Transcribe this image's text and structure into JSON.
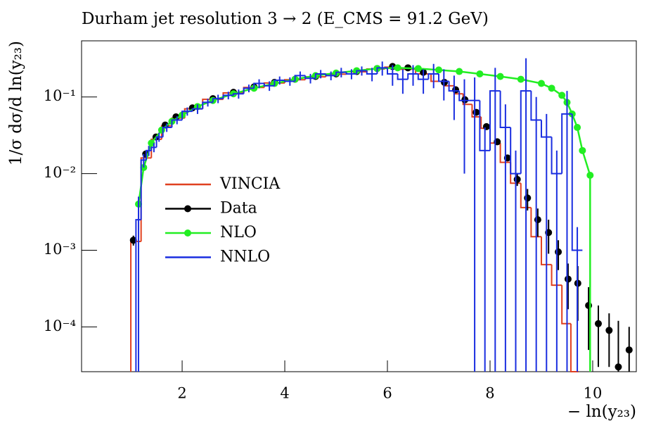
{
  "chart_data": {
    "type": "line",
    "title": "Durham jet resolution 3 → 2 (E_CMS = 91.2 GeV)",
    "x_label": "− ln(y₂₃)",
    "y_label": "1/σ dσ/d ln(y₂₃)",
    "xlim": [
      0.04,
      10.85
    ],
    "ylim": [
      2.6e-05,
      0.54
    ],
    "log_y": true,
    "xticks": [
      2,
      4,
      6,
      8,
      10
    ],
    "yticks": [
      {
        "value": 0.0001,
        "label": "10⁻⁴"
      },
      {
        "value": 0.001,
        "label": "10⁻³"
      },
      {
        "value": 0.01,
        "label": "10⁻²"
      },
      {
        "value": 0.1,
        "label": "10⁻¹"
      }
    ],
    "legend": "left",
    "series": [
      {
        "name": "VINCIA",
        "color": "#e04020",
        "style": "step",
        "x": [
          1.1,
          1.3,
          1.5,
          1.7,
          1.9,
          2.2,
          2.6,
          3.0,
          3.4,
          3.8,
          4.2,
          4.6,
          5.0,
          5.4,
          5.8,
          6.1,
          6.4,
          6.7,
          7.0,
          7.2,
          7.4,
          7.55,
          7.75,
          7.9,
          8.1,
          8.3,
          8.5,
          8.7,
          8.9,
          9.1,
          9.3,
          9.5,
          9.65
        ],
        "values": [
          0.0013,
          0.016,
          0.028,
          0.042,
          0.053,
          0.07,
          0.093,
          0.113,
          0.133,
          0.152,
          0.168,
          0.183,
          0.198,
          0.213,
          0.232,
          0.245,
          0.23,
          0.2,
          0.16,
          0.14,
          0.11,
          0.08,
          0.055,
          0.039,
          0.025,
          0.014,
          0.0075,
          0.0036,
          0.0015,
          0.00065,
          0.00035,
          0.00011,
          2e-05
        ]
      },
      {
        "name": "Data",
        "color": "#000000",
        "style": "points",
        "x": [
          1.05,
          1.29,
          1.49,
          1.67,
          1.88,
          2.2,
          2.6,
          3.0,
          3.4,
          3.8,
          4.2,
          4.6,
          5.0,
          5.4,
          5.8,
          6.1,
          6.4,
          6.7,
          7.11,
          7.33,
          7.51,
          7.73,
          7.93,
          8.14,
          8.34,
          8.53,
          8.73,
          8.93,
          9.14,
          9.33,
          9.52,
          9.71,
          9.92,
          10.11,
          10.32,
          10.5,
          10.71
        ],
        "values": [
          0.00135,
          0.018,
          0.03,
          0.043,
          0.055,
          0.072,
          0.095,
          0.115,
          0.135,
          0.155,
          0.17,
          0.185,
          0.2,
          0.215,
          0.235,
          0.25,
          0.24,
          0.21,
          0.155,
          0.124,
          0.092,
          0.063,
          0.041,
          0.026,
          0.016,
          0.0084,
          0.0048,
          0.0025,
          0.0017,
          0.00095,
          0.00042,
          0.00037,
          0.00019,
          0.00011,
          9e-05,
          3e-05,
          5e-05
        ],
        "errors": [
          0.0002,
          0.001,
          0.001,
          0.001,
          0.001,
          0.001,
          0.001,
          0.001,
          0.001,
          0.001,
          0.001,
          0.001,
          0.001,
          0.001,
          0.002,
          0.002,
          0.002,
          0.002,
          0.002,
          0.002,
          0.002,
          0.002,
          0.002,
          0.001,
          0.001,
          0.0015,
          0.0015,
          0.001,
          0.0008,
          0.0004,
          0.00025,
          0.00025,
          0.00014,
          8e-05,
          6e-05,
          9e-05,
          5e-05
        ]
      },
      {
        "name": "NLO",
        "color": "#22ee22",
        "style": "markers-line",
        "x": [
          1.15,
          1.25,
          1.4,
          1.6,
          1.8,
          2.0,
          2.3,
          2.6,
          3.0,
          3.4,
          3.8,
          4.2,
          4.6,
          5.0,
          5.4,
          5.8,
          6.2,
          6.6,
          7.0,
          7.4,
          7.8,
          8.2,
          8.6,
          9.0,
          9.2,
          9.4,
          9.5,
          9.6,
          9.7,
          9.8,
          9.95
        ],
        "values": [
          0.004,
          0.012,
          0.025,
          0.037,
          0.048,
          0.058,
          0.075,
          0.09,
          0.11,
          0.13,
          0.15,
          0.17,
          0.19,
          0.205,
          0.22,
          0.235,
          0.24,
          0.235,
          0.225,
          0.215,
          0.2,
          0.185,
          0.17,
          0.15,
          0.13,
          0.105,
          0.085,
          0.06,
          0.04,
          0.02,
          0.0095
        ]
      },
      {
        "name": "NNLO",
        "color": "#1a2ee0",
        "style": "step",
        "x": [
          1.15,
          1.25,
          1.35,
          1.45,
          1.55,
          1.7,
          1.9,
          2.1,
          2.3,
          2.5,
          2.7,
          2.9,
          3.1,
          3.3,
          3.5,
          3.7,
          3.9,
          4.1,
          4.3,
          4.5,
          4.7,
          4.9,
          5.1,
          5.3,
          5.5,
          5.7,
          5.9,
          6.1,
          6.3,
          6.5,
          6.7,
          6.9,
          7.1,
          7.3,
          7.5,
          7.7,
          7.9,
          8.1,
          8.3,
          8.5,
          8.7,
          8.9,
          9.1,
          9.3,
          9.5,
          9.7
        ],
        "values": [
          0.0025,
          0.015,
          0.02,
          0.022,
          0.03,
          0.04,
          0.05,
          0.065,
          0.07,
          0.085,
          0.095,
          0.105,
          0.11,
          0.13,
          0.15,
          0.14,
          0.165,
          0.16,
          0.19,
          0.175,
          0.2,
          0.19,
          0.21,
          0.2,
          0.22,
          0.2,
          0.24,
          0.2,
          0.17,
          0.2,
          0.17,
          0.2,
          0.16,
          0.12,
          0.09,
          0.09,
          0.02,
          0.12,
          0.04,
          0.01,
          0.12,
          0.05,
          0.03,
          0.01,
          0.06,
          0.001
        ],
        "errors": [
          0.0025,
          0.003,
          0.003,
          0.003,
          0.004,
          0.005,
          0.006,
          0.008,
          0.01,
          0.01,
          0.012,
          0.012,
          0.015,
          0.015,
          0.02,
          0.02,
          0.02,
          0.02,
          0.025,
          0.025,
          0.025,
          0.025,
          0.03,
          0.03,
          0.03,
          0.04,
          0.05,
          0.06,
          0.06,
          0.06,
          0.06,
          0.07,
          0.07,
          0.07,
          0.08,
          0.09,
          0.02,
          0.12,
          0.04,
          0.01,
          0.2,
          0.05,
          0.03,
          0.01,
          0.06,
          0.001
        ]
      }
    ]
  }
}
